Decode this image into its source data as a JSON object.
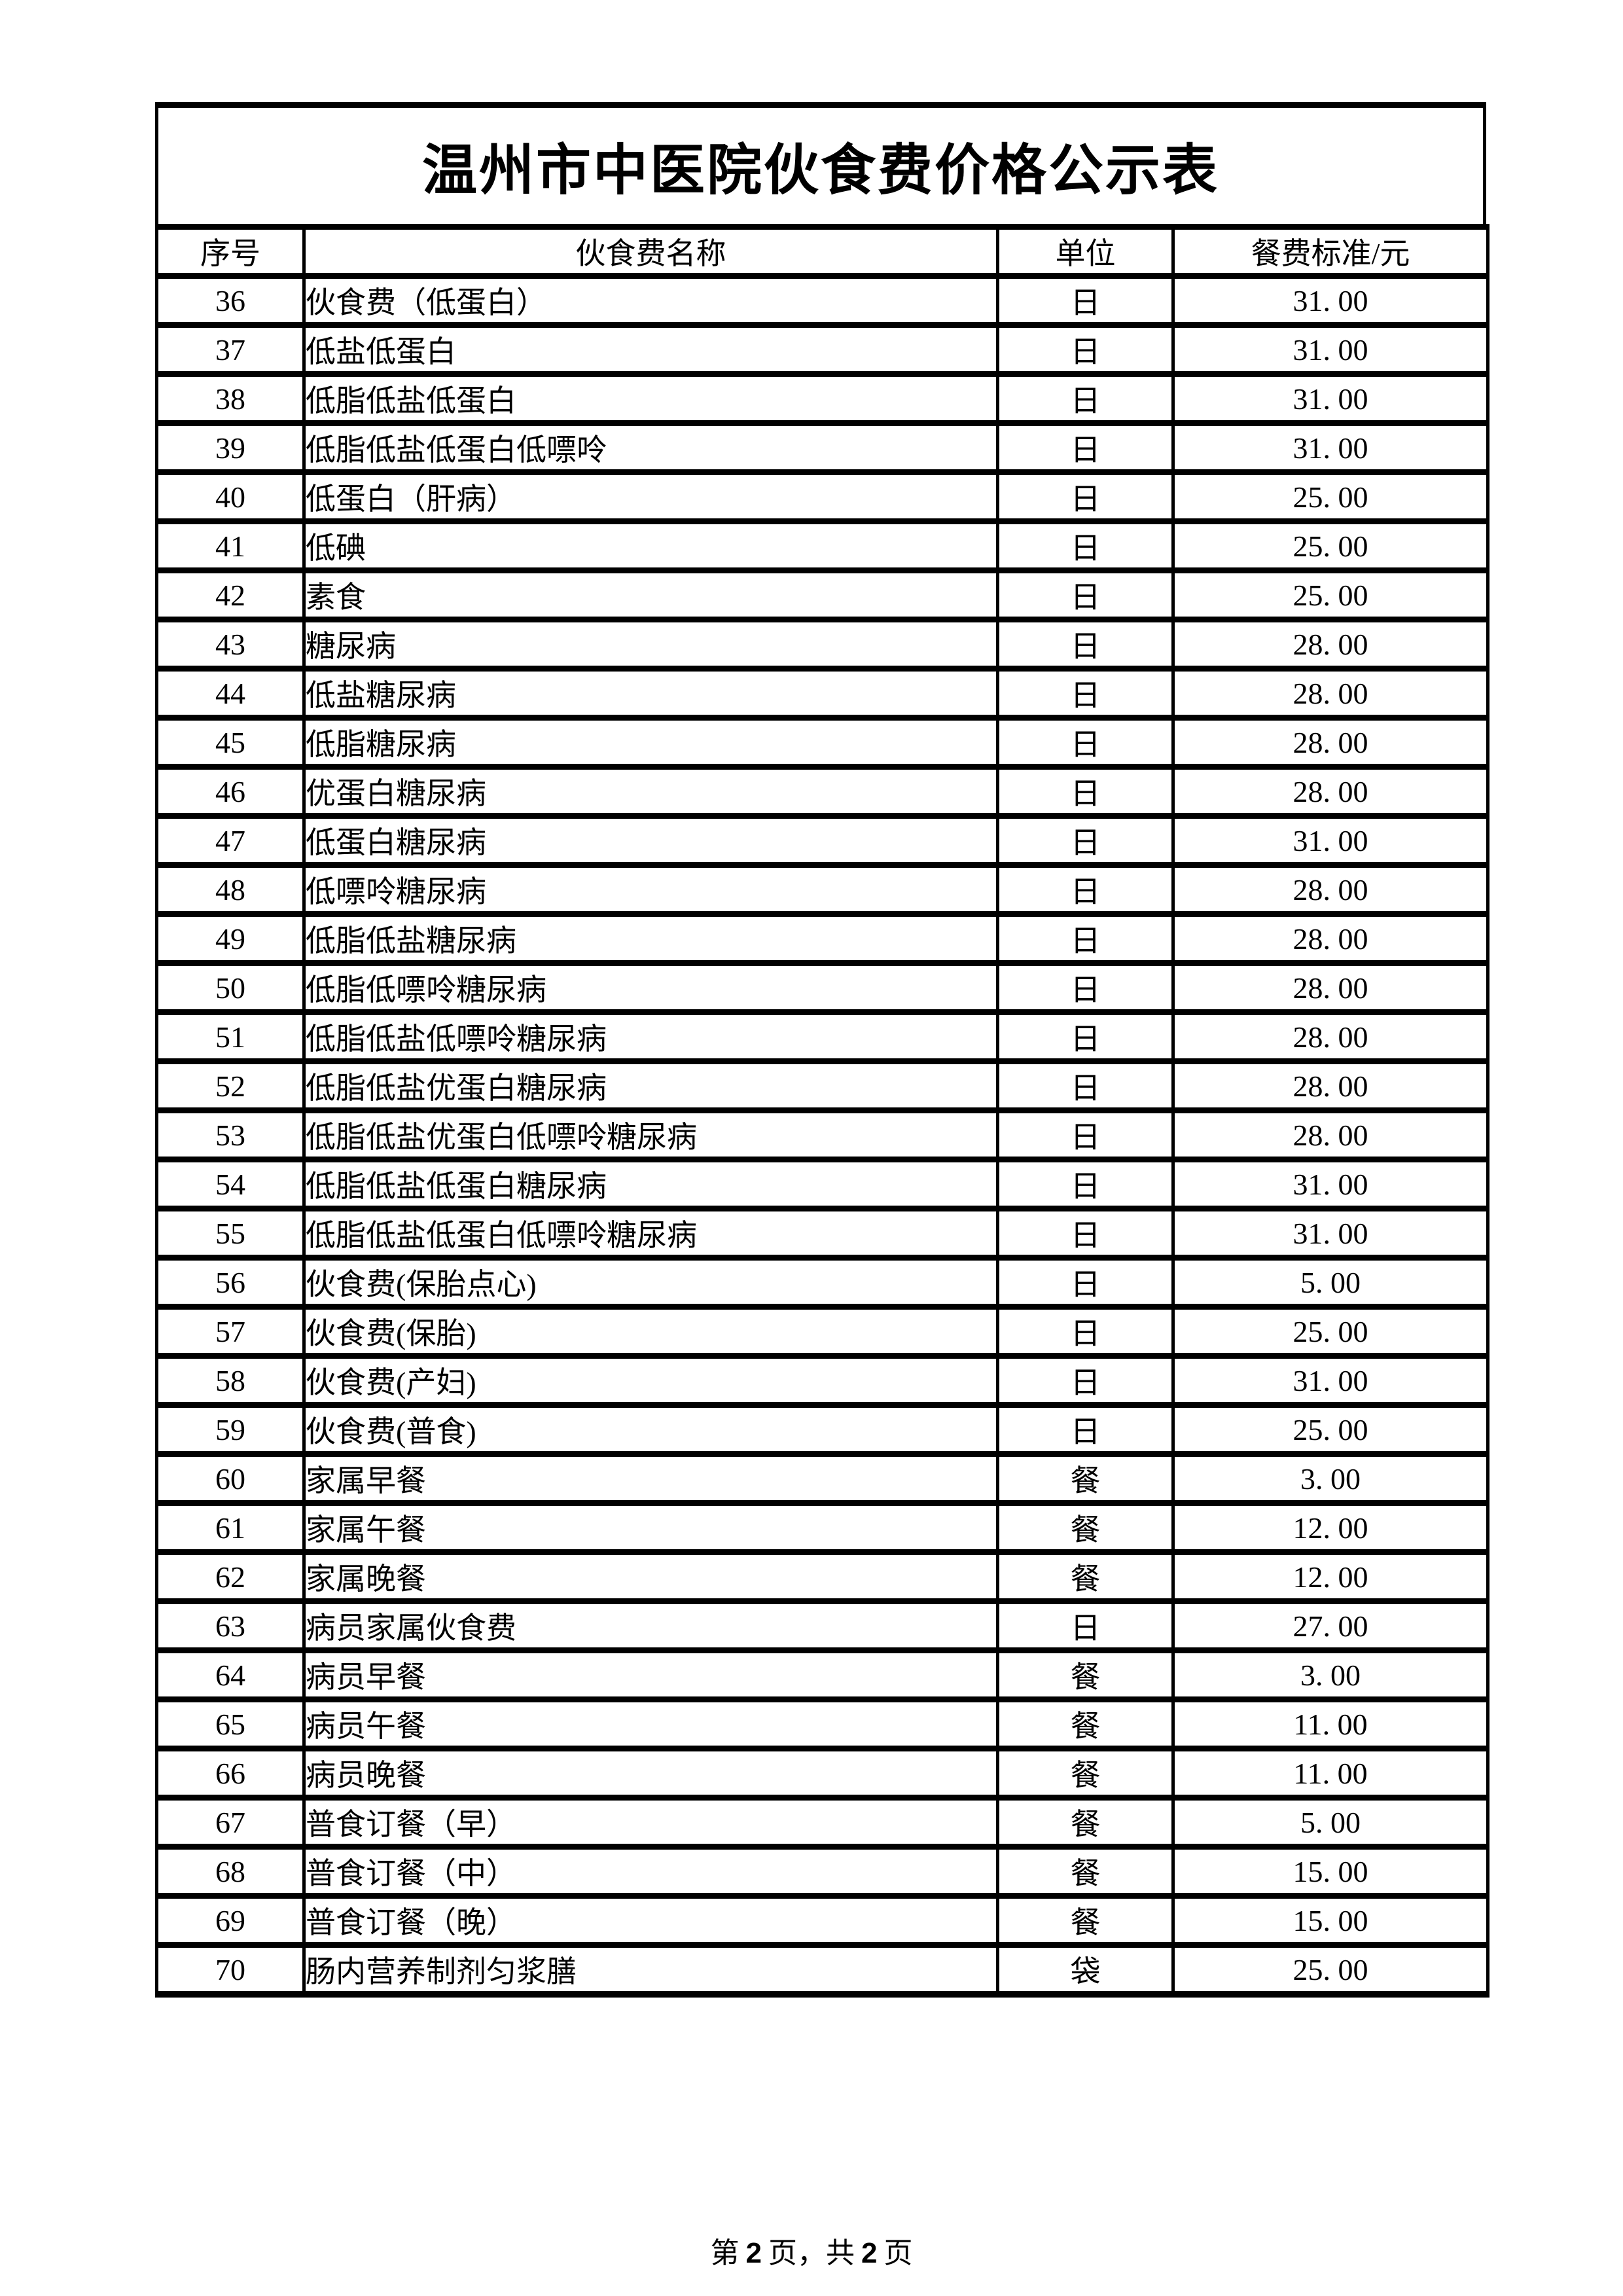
{
  "page": {
    "title": "温州市中医院伙食费价格公示表"
  },
  "table": {
    "columns": [
      "序号",
      "伙食费名称",
      "单位",
      "餐费标准/元"
    ],
    "rows": [
      {
        "no": "36",
        "name": "伙食费（低蛋白）",
        "unit": "日",
        "price": "31. 00"
      },
      {
        "no": "37",
        "name": "低盐低蛋白",
        "unit": "日",
        "price": "31. 00"
      },
      {
        "no": "38",
        "name": "低脂低盐低蛋白",
        "unit": "日",
        "price": "31. 00"
      },
      {
        "no": "39",
        "name": "低脂低盐低蛋白低嘌呤",
        "unit": "日",
        "price": "31. 00"
      },
      {
        "no": "40",
        "name": "低蛋白（肝病）",
        "unit": "日",
        "price": "25. 00"
      },
      {
        "no": "41",
        "name": "低碘",
        "unit": "日",
        "price": "25. 00"
      },
      {
        "no": "42",
        "name": "素食",
        "unit": "日",
        "price": "25. 00"
      },
      {
        "no": "43",
        "name": "糖尿病",
        "unit": "日",
        "price": "28. 00"
      },
      {
        "no": "44",
        "name": "低盐糖尿病",
        "unit": "日",
        "price": "28. 00"
      },
      {
        "no": "45",
        "name": "低脂糖尿病",
        "unit": "日",
        "price": "28. 00"
      },
      {
        "no": "46",
        "name": "优蛋白糖尿病",
        "unit": "日",
        "price": "28. 00"
      },
      {
        "no": "47",
        "name": "低蛋白糖尿病",
        "unit": "日",
        "price": "31. 00"
      },
      {
        "no": "48",
        "name": "低嘌呤糖尿病",
        "unit": "日",
        "price": "28. 00"
      },
      {
        "no": "49",
        "name": "低脂低盐糖尿病",
        "unit": "日",
        "price": "28. 00"
      },
      {
        "no": "50",
        "name": "低脂低嘌呤糖尿病",
        "unit": "日",
        "price": "28. 00"
      },
      {
        "no": "51",
        "name": "低脂低盐低嘌呤糖尿病",
        "unit": "日",
        "price": "28. 00"
      },
      {
        "no": "52",
        "name": "低脂低盐优蛋白糖尿病",
        "unit": "日",
        "price": "28. 00"
      },
      {
        "no": "53",
        "name": "低脂低盐优蛋白低嘌呤糖尿病",
        "unit": "日",
        "price": "28. 00"
      },
      {
        "no": "54",
        "name": "低脂低盐低蛋白糖尿病",
        "unit": "日",
        "price": "31. 00"
      },
      {
        "no": "55",
        "name": "低脂低盐低蛋白低嘌呤糖尿病",
        "unit": "日",
        "price": "31. 00"
      },
      {
        "no": "56",
        "name": "伙食费(保胎点心)",
        "unit": "日",
        "price": "5. 00"
      },
      {
        "no": "57",
        "name": "伙食费(保胎)",
        "unit": "日",
        "price": "25. 00"
      },
      {
        "no": "58",
        "name": "伙食费(产妇)",
        "unit": "日",
        "price": "31. 00"
      },
      {
        "no": "59",
        "name": "伙食费(普食)",
        "unit": "日",
        "price": "25. 00"
      },
      {
        "no": "60",
        "name": "家属早餐",
        "unit": "餐",
        "price": "3. 00"
      },
      {
        "no": "61",
        "name": "家属午餐",
        "unit": "餐",
        "price": "12. 00"
      },
      {
        "no": "62",
        "name": "家属晚餐",
        "unit": "餐",
        "price": "12. 00"
      },
      {
        "no": "63",
        "name": "病员家属伙食费",
        "unit": "日",
        "price": "27. 00"
      },
      {
        "no": "64",
        "name": "病员早餐",
        "unit": "餐",
        "price": "3. 00"
      },
      {
        "no": "65",
        "name": "病员午餐",
        "unit": "餐",
        "price": "11. 00"
      },
      {
        "no": "66",
        "name": "病员晚餐",
        "unit": "餐",
        "price": "11. 00"
      },
      {
        "no": "67",
        "name": "普食订餐（早）",
        "unit": "餐",
        "price": "5. 00"
      },
      {
        "no": "68",
        "name": "普食订餐（中）",
        "unit": "餐",
        "price": "15. 00"
      },
      {
        "no": "69",
        "name": "普食订餐（晚）",
        "unit": "餐",
        "price": "15. 00"
      },
      {
        "no": "70",
        "name": "肠内营养制剂匀浆膳",
        "unit": "袋",
        "price": "25. 00"
      }
    ]
  },
  "footer": {
    "prefix": "第",
    "page_num": "2",
    "middle": "页，共",
    "total_num": "2",
    "suffix": "页"
  }
}
